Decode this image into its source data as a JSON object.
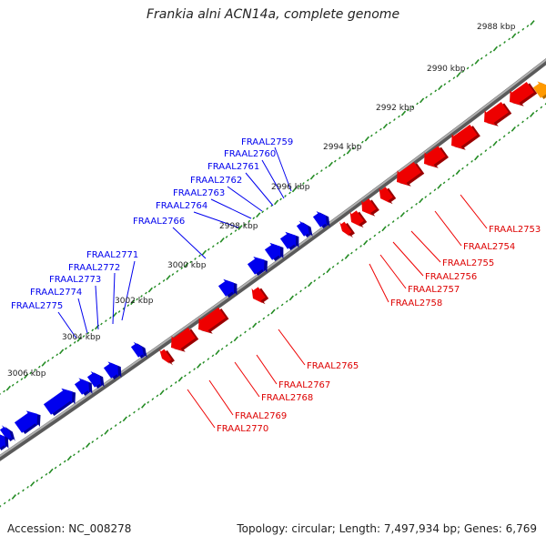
{
  "title": "Frankia alni ACN14a, complete genome",
  "footer": {
    "accession": "Accession: NC_008278",
    "summary": "Topology: circular; Length: 7,497,934 bp; Genes: 6,769"
  },
  "colors": {
    "forward_gene": "#0000ee",
    "reverse_gene": "#ee0000",
    "other_gene": "#ff9900",
    "backbone": "#808080",
    "tick": "#228b22"
  },
  "scale_ticks": [
    "2988 kbp",
    "2990 kbp",
    "2992 kbp",
    "2994 kbp",
    "2996 kbp",
    "2998 kbp",
    "3000 kbp",
    "3002 kbp",
    "3004 kbp",
    "3006 kbp"
  ],
  "forward_gene_labels": [
    "FRAAL2759",
    "FRAAL2760",
    "FRAAL2761",
    "FRAAL2762",
    "FRAAL2763",
    "FRAAL2764",
    "FRAAL2766",
    "FRAAL2771",
    "FRAAL2772",
    "FRAAL2773",
    "FRAAL2774",
    "FRAAL2775"
  ],
  "reverse_gene_labels": [
    "FRAAL2753",
    "FRAAL2754",
    "FRAAL2755",
    "FRAAL2756",
    "FRAAL2757",
    "FRAAL2758",
    "FRAAL2765",
    "FRAAL2767",
    "FRAAL2768",
    "FRAAL2769",
    "FRAAL2770"
  ]
}
